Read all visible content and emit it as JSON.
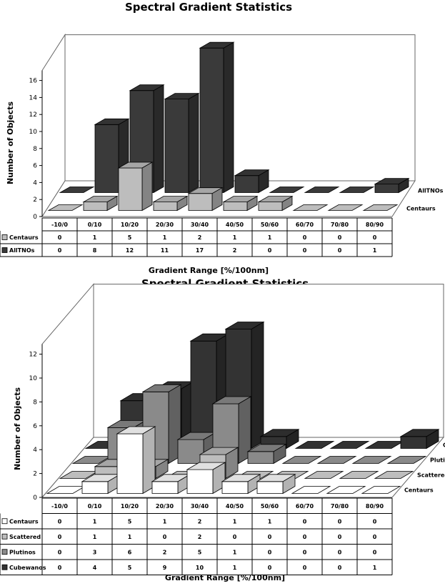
{
  "chart_data": [
    {
      "type": "bar",
      "title": "Spectral Gradient Statistics",
      "xlabel": "Gradient Range  [%/100nm]",
      "ylabel": "Number of Objects",
      "ylim": [
        0,
        16
      ],
      "yticks": [
        0,
        2,
        4,
        6,
        8,
        10,
        12,
        14,
        16
      ],
      "categories": [
        "-10/0",
        "0/10",
        "10/20",
        "20/30",
        "30/40",
        "40/50",
        "50/60",
        "60/70",
        "70/80",
        "80/90"
      ],
      "series": [
        {
          "name": "Centaurs",
          "color": "#bdbdbd",
          "values": [
            0,
            1,
            5,
            1,
            2,
            1,
            1,
            0,
            0,
            0
          ]
        },
        {
          "name": "AllTNOs",
          "color": "#3a3a3a",
          "values": [
            0,
            8,
            12,
            11,
            17,
            2,
            0,
            0,
            0,
            1
          ]
        }
      ],
      "grid": false,
      "legend": "data table"
    },
    {
      "type": "bar",
      "title": "Spectral Gradient Statistics",
      "xlabel": "Gradient Range  [%/100nm]",
      "ylabel": "Number of Objects",
      "ylim": [
        0,
        12
      ],
      "yticks": [
        0,
        2,
        4,
        6,
        8,
        10,
        12
      ],
      "categories": [
        "-10/0",
        "0/10",
        "10/20",
        "20/30",
        "30/40",
        "40/50",
        "50/60",
        "60/70",
        "70/80",
        "80/90"
      ],
      "series": [
        {
          "name": "Centaurs",
          "color": "#ffffff",
          "values": [
            0,
            1,
            5,
            1,
            2,
            1,
            1,
            0,
            0,
            0
          ]
        },
        {
          "name": "Scattered",
          "color": "#bdbdbd",
          "values": [
            0,
            1,
            1,
            0,
            2,
            0,
            0,
            0,
            0,
            0
          ]
        },
        {
          "name": "Plutinos",
          "color": "#8a8a8a",
          "values": [
            0,
            3,
            6,
            2,
            5,
            1,
            0,
            0,
            0,
            0
          ]
        },
        {
          "name": "Cubewanos",
          "color": "#333333",
          "values": [
            0,
            4,
            5,
            9,
            10,
            1,
            0,
            0,
            0,
            1
          ]
        }
      ],
      "grid": false,
      "legend": "data table"
    }
  ]
}
